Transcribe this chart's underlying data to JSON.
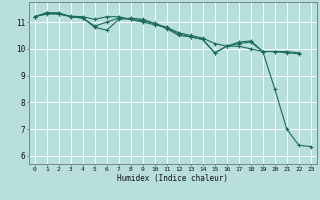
{
  "xlabel": "Humidex (Indice chaleur)",
  "xlim": [
    -0.5,
    23.5
  ],
  "ylim": [
    5.7,
    11.75
  ],
  "bg_color": "#b8dede",
  "grid_color": "#ffffff",
  "line_color": "#1a6b5a",
  "xticks": [
    0,
    1,
    2,
    3,
    4,
    5,
    6,
    7,
    8,
    9,
    10,
    11,
    12,
    13,
    14,
    15,
    16,
    17,
    18,
    19,
    20,
    21,
    22,
    23
  ],
  "yticks": [
    6,
    7,
    8,
    9,
    10,
    11
  ],
  "line1_x": [
    0,
    1,
    2,
    3,
    4,
    5,
    6,
    7,
    8,
    9,
    10,
    11,
    12,
    13,
    14,
    15,
    16,
    17,
    18,
    19,
    20,
    21,
    22
  ],
  "line1_y": [
    11.2,
    11.35,
    11.3,
    11.2,
    11.15,
    10.85,
    11.0,
    11.15,
    11.1,
    11.05,
    10.95,
    10.75,
    10.5,
    10.45,
    10.35,
    9.85,
    10.1,
    10.2,
    10.25,
    9.9,
    9.9,
    9.9,
    9.85
  ],
  "line2_x": [
    0,
    1,
    2,
    3,
    4,
    5,
    6,
    7,
    8,
    9,
    10,
    11,
    12,
    13,
    14,
    15,
    16,
    17,
    18,
    19,
    20,
    21,
    22
  ],
  "line2_y": [
    11.2,
    11.35,
    11.35,
    11.2,
    11.15,
    10.8,
    10.7,
    11.1,
    11.15,
    11.1,
    10.95,
    10.8,
    10.55,
    10.45,
    10.35,
    9.85,
    10.1,
    10.25,
    10.3,
    9.9,
    9.9,
    9.85,
    9.82
  ],
  "line3_x": [
    0,
    1,
    2,
    3,
    4,
    5,
    6,
    7,
    8,
    9,
    10,
    11,
    12,
    13,
    14,
    15,
    16,
    17,
    18,
    19,
    20,
    21,
    22,
    23
  ],
  "line3_y": [
    11.2,
    11.3,
    11.3,
    11.22,
    11.2,
    11.1,
    11.2,
    11.2,
    11.1,
    11.0,
    10.9,
    10.8,
    10.6,
    10.5,
    10.4,
    10.2,
    10.1,
    10.1,
    10.0,
    9.9,
    8.5,
    7.0,
    6.4,
    6.35
  ]
}
